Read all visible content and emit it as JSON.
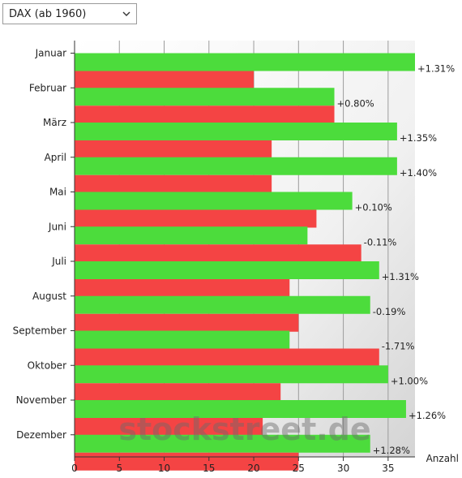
{
  "selector": {
    "selected": "DAX (ab 1960)",
    "icon": "chevron-down-icon"
  },
  "watermark": "stockstreet.de",
  "chart_data": {
    "type": "bar",
    "orientation": "horizontal",
    "categories": [
      "Januar",
      "Februar",
      "März",
      "April",
      "Mai",
      "Juni",
      "Juli",
      "August",
      "September",
      "Oktober",
      "November",
      "Dezember"
    ],
    "series": [
      {
        "color": "#4cdc3c",
        "values": [
          38,
          29,
          36,
          36,
          31,
          26,
          34,
          33,
          24,
          35,
          37,
          33
        ]
      },
      {
        "color": "#f44444",
        "values": [
          20,
          29,
          22,
          22,
          27,
          32,
          24,
          25,
          34,
          23,
          21,
          25
        ]
      }
    ],
    "data_labels": [
      "+1.31%",
      "+0.80%",
      "+1.35%",
      "+1.40%",
      "+0.10%",
      "-0.11%",
      "+1.31%",
      "-0.19%",
      "-1.71%",
      "+1.00%",
      "+1.26%",
      "+1.28%"
    ],
    "xlabel": "Anzahl",
    "xlim": [
      0,
      38
    ],
    "xticks": [
      0,
      5,
      10,
      15,
      20,
      25,
      30,
      35
    ],
    "grid": true
  }
}
